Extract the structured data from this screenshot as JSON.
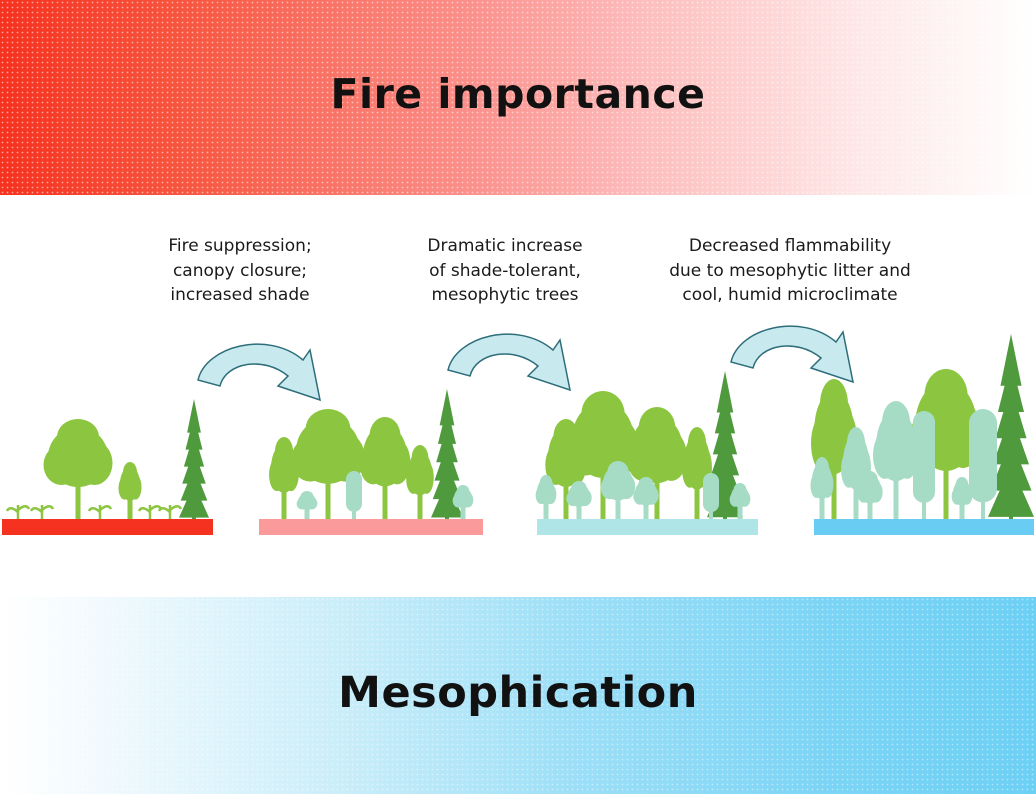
{
  "title": "Fire importance",
  "bottom_label": "Mesophication",
  "captions": [
    {
      "lines": [
        "Fire suppression;",
        "canopy closure;",
        "increased shade"
      ]
    },
    {
      "lines": [
        "Dramatic increase",
        "of shade-tolerant,",
        "mesophytic trees"
      ]
    },
    {
      "lines": [
        "Decreased flammability",
        "due to mesophytic litter and",
        "cool, humid microclimate"
      ]
    }
  ],
  "colors": {
    "fire": "#f5321f",
    "ground_stage_1": "#f5321f",
    "ground_stage_2": "#fb9a9a",
    "ground_stage_3": "#b0e5e7",
    "ground_stage_4": "#69cdf3",
    "mesophication": "#6cd0f4",
    "oak": "#8cc53f",
    "conifer": "#4f9a3d",
    "mesophyte": "#a6dcc6",
    "arrow_fill": "#c8eaee",
    "arrow_stroke": "#2e6d7a"
  }
}
